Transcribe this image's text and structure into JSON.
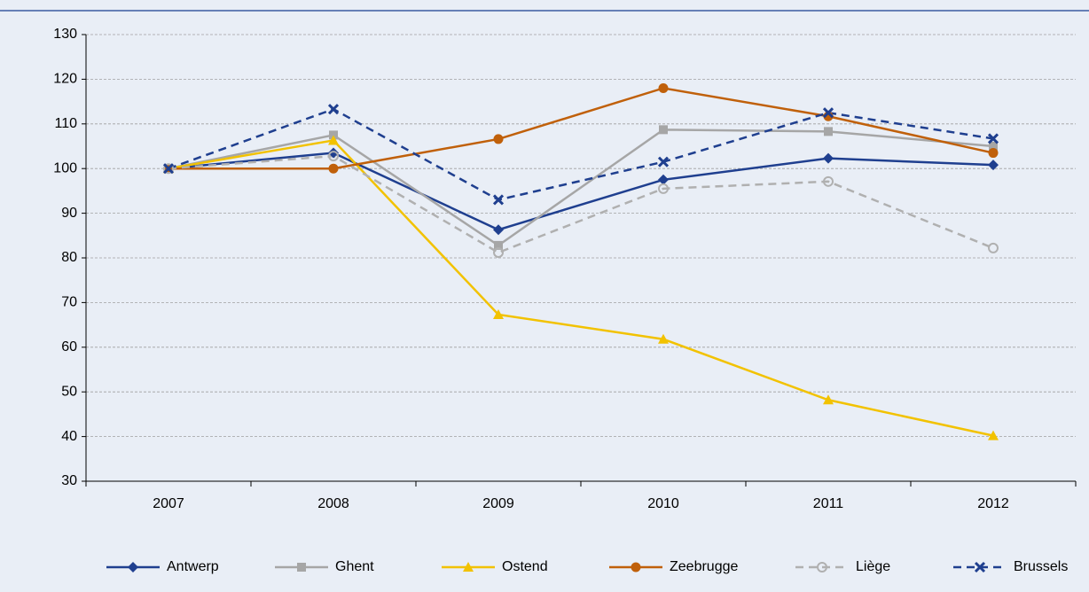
{
  "chart_data": {
    "type": "line",
    "categories": [
      "2007",
      "2008",
      "2009",
      "2010",
      "2011",
      "2012"
    ],
    "series": [
      {
        "name": "Antwerp",
        "color": "#1f3f8f",
        "marker": "diamond",
        "dashed": false,
        "values": [
          100,
          103.5,
          86.3,
          97.5,
          102.3,
          100.8
        ]
      },
      {
        "name": "Ghent",
        "color": "#a6a6a6",
        "marker": "square",
        "dashed": false,
        "values": [
          100,
          107.5,
          82.8,
          108.7,
          108.3,
          105
        ]
      },
      {
        "name": "Ostend",
        "color": "#f2c200",
        "marker": "triangle",
        "dashed": false,
        "values": [
          100,
          106.3,
          67.3,
          61.8,
          48.2,
          40.2
        ]
      },
      {
        "name": "Zeebrugge",
        "color": "#c0600a",
        "marker": "circle",
        "dashed": false,
        "values": [
          100,
          100,
          106.6,
          118,
          111.7,
          103.5
        ]
      },
      {
        "name": "Liège",
        "color": "#b0b0b0",
        "marker": "open-circle",
        "dashed": true,
        "values": [
          100,
          102.8,
          81.2,
          95.5,
          97.1,
          82.2
        ]
      },
      {
        "name": "Brussels",
        "color": "#1f3f8f",
        "marker": "cross",
        "dashed": true,
        "values": [
          100,
          113.3,
          93,
          101.5,
          112.5,
          106.7
        ]
      }
    ],
    "ylim": [
      30,
      130
    ],
    "yticks": [
      30,
      40,
      50,
      60,
      70,
      80,
      90,
      100,
      110,
      120,
      130
    ],
    "grid": true,
    "legend": "bottom"
  }
}
